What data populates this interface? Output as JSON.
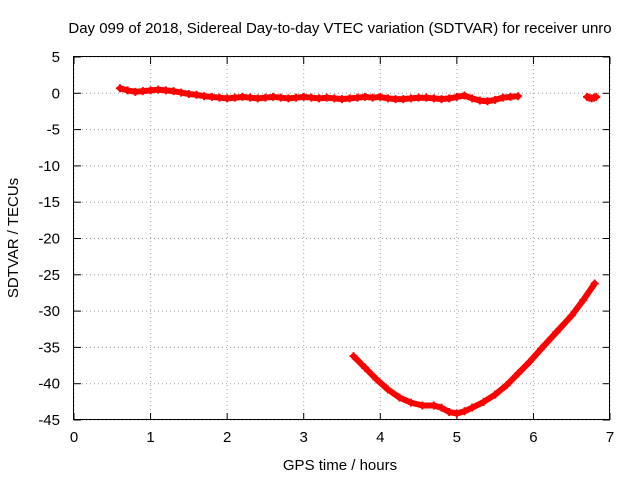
{
  "chart_data": {
    "type": "scatter",
    "title": "Day 099 of 2018, Sidereal Day-to-day VTEC variation (SDTVAR) for receiver unro",
    "xlabel": "GPS time / hours",
    "ylabel": "SDTVAR / TECUs",
    "xlim": [
      0,
      7
    ],
    "ylim": [
      -45,
      5
    ],
    "xticks": [
      "0",
      "1",
      "2",
      "3",
      "4",
      "5",
      "6",
      "7"
    ],
    "yticks": [
      "5",
      "0",
      "-5",
      "-10",
      "-15",
      "-20",
      "-25",
      "-30",
      "-35",
      "-40",
      "-45"
    ],
    "grid": true,
    "marker_color": "#ff0000",
    "series": [
      {
        "x": [
          0.6,
          0.7,
          0.8,
          0.9,
          1.0,
          1.1,
          1.2,
          1.3,
          1.4,
          1.5,
          1.6,
          1.7,
          1.8,
          1.9,
          2.0,
          2.1,
          2.2,
          2.3,
          2.4,
          2.5,
          2.6,
          2.7,
          2.8,
          2.9,
          3.0,
          3.1,
          3.2,
          3.3,
          3.4,
          3.5,
          3.6,
          3.7,
          3.8,
          3.9,
          4.0,
          4.1,
          4.2,
          4.3,
          4.4,
          4.5,
          4.6,
          4.7,
          4.8,
          4.9,
          5.0,
          5.1,
          5.2,
          5.3,
          5.4,
          5.5,
          5.6,
          5.7,
          5.8
        ],
        "y": [
          0.7,
          0.4,
          0.2,
          0.3,
          0.4,
          0.5,
          0.4,
          0.3,
          0.1,
          -0.1,
          -0.2,
          -0.4,
          -0.5,
          -0.6,
          -0.7,
          -0.6,
          -0.5,
          -0.6,
          -0.7,
          -0.6,
          -0.5,
          -0.6,
          -0.7,
          -0.6,
          -0.5,
          -0.6,
          -0.7,
          -0.6,
          -0.7,
          -0.8,
          -0.7,
          -0.6,
          -0.5,
          -0.6,
          -0.5,
          -0.7,
          -0.8,
          -0.8,
          -0.7,
          -0.6,
          -0.6,
          -0.7,
          -0.8,
          -0.7,
          -0.5,
          -0.3,
          -0.7,
          -1.0,
          -1.1,
          -0.9,
          -0.6,
          -0.5,
          -0.4
        ]
      },
      {
        "x": [
          6.7,
          6.73,
          6.76,
          6.79,
          6.82
        ],
        "y": [
          -0.5,
          -0.6,
          -0.7,
          -0.6,
          -0.5
        ]
      },
      {
        "x": [
          3.65,
          3.8,
          3.95,
          4.1,
          4.25,
          4.4,
          4.55,
          4.7,
          4.8,
          4.9,
          5.0,
          5.1,
          5.2,
          5.35,
          5.5,
          5.65,
          5.8,
          5.95,
          6.1,
          6.3,
          6.5,
          6.65,
          6.8
        ],
        "y": [
          -36.2,
          -37.8,
          -39.4,
          -40.8,
          -41.9,
          -42.6,
          -43.0,
          -43.0,
          -43.3,
          -43.9,
          -44.1,
          -43.8,
          -43.3,
          -42.5,
          -41.5,
          -40.2,
          -38.6,
          -37.0,
          -35.2,
          -32.9,
          -30.6,
          -28.5,
          -26.2
        ]
      }
    ]
  }
}
